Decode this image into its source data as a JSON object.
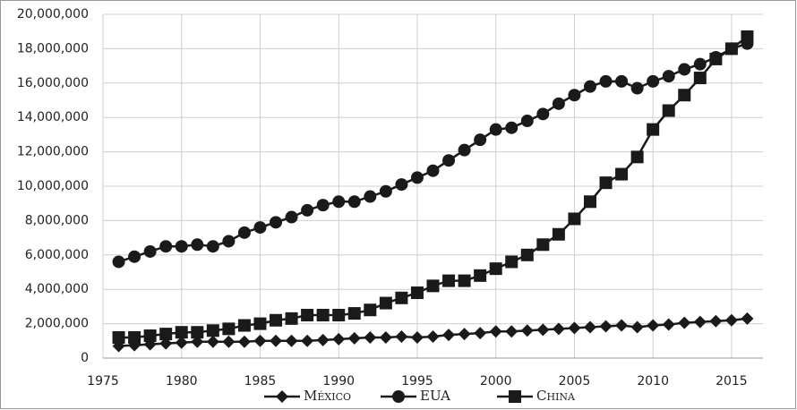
{
  "chart_data": {
    "type": "line",
    "x": [
      1976,
      1977,
      1978,
      1979,
      1980,
      1981,
      1982,
      1983,
      1984,
      1985,
      1986,
      1987,
      1988,
      1989,
      1990,
      1991,
      1992,
      1993,
      1994,
      1995,
      1996,
      1997,
      1998,
      1999,
      2000,
      2001,
      2002,
      2003,
      2004,
      2005,
      2006,
      2007,
      2008,
      2009,
      2010,
      2011,
      2012,
      2013,
      2014,
      2015,
      2016
    ],
    "series": [
      {
        "name": "México",
        "color": "#1a1a1a",
        "marker": "diamond",
        "values": [
          700000,
          750000,
          800000,
          850000,
          900000,
          950000,
          950000,
          950000,
          950000,
          1000000,
          1000000,
          1000000,
          1000000,
          1050000,
          1100000,
          1150000,
          1200000,
          1200000,
          1250000,
          1200000,
          1250000,
          1350000,
          1400000,
          1450000,
          1550000,
          1550000,
          1600000,
          1650000,
          1700000,
          1750000,
          1800000,
          1850000,
          1900000,
          1800000,
          1900000,
          1950000,
          2050000,
          2100000,
          2150000,
          2200000,
          2300000
        ]
      },
      {
        "name": "EUA",
        "color": "#1a1a1a",
        "marker": "circle",
        "values": [
          5600000,
          5900000,
          6200000,
          6500000,
          6500000,
          6600000,
          6500000,
          6800000,
          7300000,
          7600000,
          7900000,
          8200000,
          8600000,
          8900000,
          9100000,
          9100000,
          9400000,
          9700000,
          10100000,
          10500000,
          10900000,
          11500000,
          12100000,
          12700000,
          13300000,
          13400000,
          13800000,
          14200000,
          14800000,
          15300000,
          15800000,
          16100000,
          16100000,
          15700000,
          16100000,
          16400000,
          16800000,
          17100000,
          17500000,
          18000000,
          18300000
        ]
      },
      {
        "name": "China",
        "color": "#1a1a1a",
        "marker": "square",
        "values": [
          1200000,
          1200000,
          1300000,
          1400000,
          1500000,
          1500000,
          1600000,
          1700000,
          1900000,
          2000000,
          2200000,
          2300000,
          2500000,
          2500000,
          2500000,
          2600000,
          2800000,
          3200000,
          3500000,
          3800000,
          4200000,
          4500000,
          4500000,
          4800000,
          5200000,
          5600000,
          6000000,
          6600000,
          7200000,
          8100000,
          9100000,
          10200000,
          10700000,
          11700000,
          13300000,
          14400000,
          15300000,
          16300000,
          17400000,
          18000000,
          18700000
        ]
      }
    ],
    "xlim": [
      1975,
      2017
    ],
    "xticks": [
      1975,
      1980,
      1985,
      1990,
      1995,
      2000,
      2005,
      2010,
      2015
    ],
    "ylim": [
      0,
      20000000
    ],
    "yticks": [
      0,
      {
        "value": 2000000,
        "label": "2,000,000"
      },
      {
        "value": 4000000,
        "label": "4,000,000"
      },
      {
        "value": 6000000,
        "label": "6,000,000"
      },
      {
        "value": 8000000,
        "label": "8,000,000"
      },
      {
        "value": 10000000,
        "label": "10,000,000"
      },
      {
        "value": 12000000,
        "label": "12,000,000"
      },
      {
        "value": 14000000,
        "label": "14,000,000"
      },
      {
        "value": 16000000,
        "label": "16,000,000"
      },
      {
        "value": 18000000,
        "label": "18,000,000"
      },
      {
        "value": 20000000,
        "label": "20,000,000"
      }
    ],
    "grid": true,
    "legend": "bottom"
  }
}
